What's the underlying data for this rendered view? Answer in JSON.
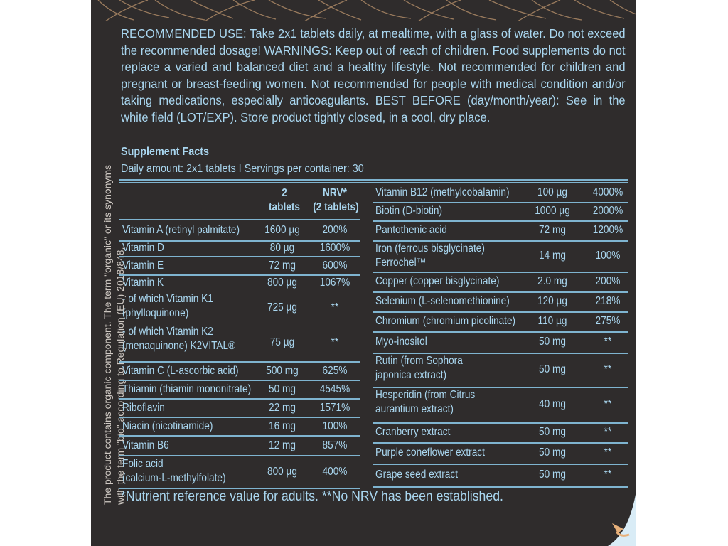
{
  "recommended_use": "RECOMMENDED USE: Take 2x1 tablets daily, at mealtime, with a glass of water. Do not exceed the recommended dosage! WARNINGS: Keep out of reach of children. Food supplements do not replace a varied and balanced diet and a healthy lifestyle. Not recommended for children and pregnant or breast-feeding women. Not recommended for people with medical condition and/or taking medications, especially anticoagulants. BEST BEFORE (day/month/year): See in the white field (LOT/EXP). Store product tightly closed, in a cool, dry place.",
  "vertical_text": {
    "line1": "The product contains organic component. The term \"organic\" or its synonyms",
    "line2": "with the term \"bio\" according to Regulation (EU) 2018/848."
  },
  "supplement_facts": {
    "title": "Supplement Facts",
    "subtitle": "Daily amount: 2x1 tablets I Servings per container: 30",
    "header": {
      "amount_line1": "2",
      "amount_line2": "tablets",
      "nrv_line1": "NRV*",
      "nrv_line2": "(2 tablets)"
    },
    "left": [
      {
        "name": "Vitamin A (retinyl palmitate)",
        "amount": "1600 µg",
        "nrv": "200%"
      },
      {
        "name": "Vitamin D",
        "amount": "80 µg",
        "nrv": "1600%"
      },
      {
        "name": "Vitamin E",
        "amount": "72 mg",
        "nrv": "600%"
      },
      {
        "name": "Vitamin K",
        "amount": "800 µg",
        "nrv": "1067%"
      },
      {
        "name": " - of which Vitamin K1",
        "name2": "   (phylloquinone)",
        "amount": "725 µg",
        "nrv": "**"
      },
      {
        "name": " - of which Vitamin K2",
        "name2": "   (menaquinone) K2VITAL®",
        "amount": "75 µg",
        "nrv": "**"
      },
      {
        "name": "Vitamin C (L-ascorbic acid)",
        "amount": "500 mg",
        "nrv": "625%"
      },
      {
        "name": "Thiamin (thiamin mononitrate)",
        "amount": "50 mg",
        "nrv": "4545%"
      },
      {
        "name": "Riboflavin",
        "amount": "22 mg",
        "nrv": "1571%"
      },
      {
        "name": "Niacin (nicotinamide)",
        "amount": "16 mg",
        "nrv": "100%"
      },
      {
        "name": "Vitamin B6",
        "amount": "12 mg",
        "nrv": "857%"
      },
      {
        "name": "Folic acid",
        "name2": "(calcium-L-methylfolate)",
        "amount": "800 µg",
        "nrv": "400%"
      }
    ],
    "right": [
      {
        "name": "Vitamin B12 (methylcobalamin)",
        "amount": "100 µg",
        "nrv": "4000%"
      },
      {
        "name": "Biotin (D-biotin)",
        "amount": "1000 µg",
        "nrv": "2000%"
      },
      {
        "name": "Pantothenic acid",
        "amount": "72 mg",
        "nrv": "1200%"
      },
      {
        "name": "Iron (ferrous bisglycinate)",
        "name2": "Ferrochel™",
        "amount": "14 mg",
        "nrv": "100%"
      },
      {
        "name": "Copper (copper bisglycinate)",
        "amount": "2.0 mg",
        "nrv": "200%"
      },
      {
        "name": "Selenium (L-selenomethionine)",
        "amount": "120 µg",
        "nrv": "218%"
      },
      {
        "name": "Chromium (chromium picolinate)",
        "amount": "110 µg",
        "nrv": "275%"
      },
      {
        "name": "Myo-inositol",
        "amount": "50 mg",
        "nrv": "**"
      },
      {
        "name": "Rutin (from Sophora",
        "name2": "japonica extract)",
        "amount": "50 mg",
        "nrv": "**"
      },
      {
        "name": "Hesperidin (from Citrus",
        "name2": "aurantium extract)",
        "amount": "40 mg",
        "nrv": "**"
      },
      {
        "name": "Cranberry extract",
        "amount": "50 mg",
        "nrv": "**"
      },
      {
        "name": "Purple coneflower extract",
        "amount": "50 mg",
        "nrv": "**"
      },
      {
        "name": "Grape seed extract",
        "amount": "50 mg",
        "nrv": "**"
      }
    ],
    "footnote": "*Nutrient reference value for adults. **No NRV has been established."
  }
}
